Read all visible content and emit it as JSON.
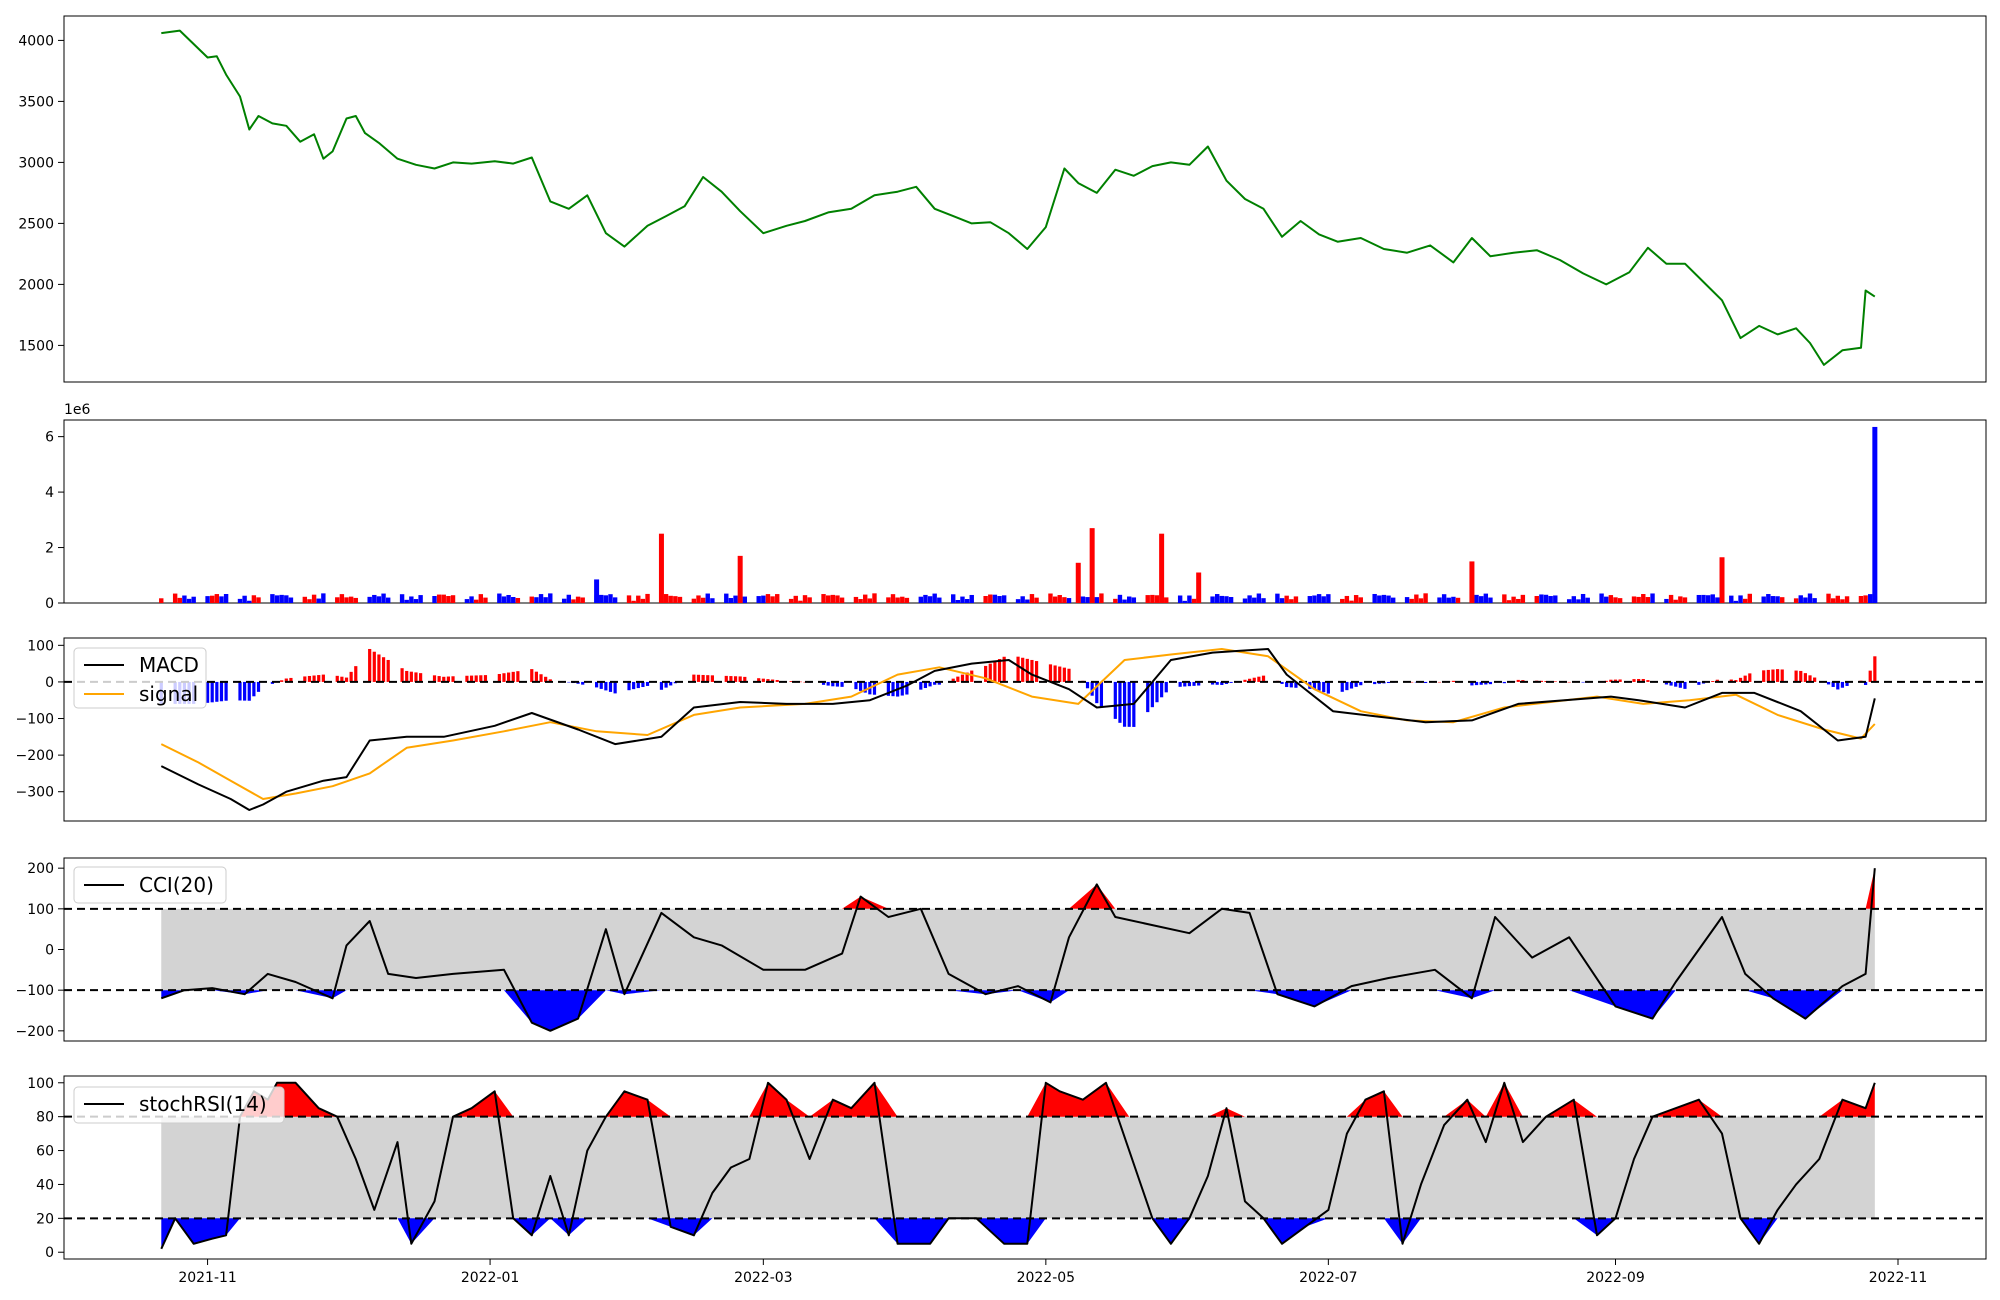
{
  "chart_data": [
    {
      "type": "line",
      "panel": "price",
      "ylim": [
        1200,
        4200
      ],
      "yticks": [
        "1500",
        "2000",
        "2500",
        "3000",
        "3500",
        "4000"
      ],
      "colors": {
        "line": "#008000"
      },
      "series": [
        {
          "x": [
            "2021-10-22",
            "2021-10-26",
            "2021-11-01",
            "2021-11-03",
            "2021-11-05",
            "2021-11-08",
            "2021-11-10",
            "2021-11-12",
            "2021-11-15",
            "2021-11-18",
            "2021-11-21",
            "2021-11-24",
            "2021-11-26",
            "2021-11-28",
            "2021-12-01",
            "2021-12-03",
            "2021-12-05",
            "2021-12-08",
            "2021-12-12",
            "2021-12-16",
            "2021-12-20",
            "2021-12-24",
            "2021-12-28",
            "2022-01-02",
            "2022-01-06",
            "2022-01-10",
            "2022-01-14",
            "2022-01-18",
            "2022-01-22",
            "2022-01-26",
            "2022-01-30",
            "2022-02-04",
            "2022-02-08",
            "2022-02-12",
            "2022-02-16",
            "2022-02-20",
            "2022-02-24",
            "2022-03-01",
            "2022-03-06",
            "2022-03-10",
            "2022-03-15",
            "2022-03-20",
            "2022-03-25",
            "2022-03-30",
            "2022-04-03",
            "2022-04-07",
            "2022-04-11",
            "2022-04-15",
            "2022-04-19",
            "2022-04-23",
            "2022-04-27",
            "2022-05-01",
            "2022-05-05",
            "2022-05-08",
            "2022-05-12",
            "2022-05-16",
            "2022-05-20",
            "2022-05-24",
            "2022-05-28",
            "2022-06-01",
            "2022-06-05",
            "2022-06-09",
            "2022-06-13",
            "2022-06-17",
            "2022-06-21",
            "2022-06-25",
            "2022-06-29",
            "2022-07-03",
            "2022-07-08",
            "2022-07-13",
            "2022-07-18",
            "2022-07-23",
            "2022-07-28",
            "2022-08-01",
            "2022-08-05",
            "2022-08-10",
            "2022-08-15",
            "2022-08-20",
            "2022-08-25",
            "2022-08-30",
            "2022-09-04",
            "2022-09-08",
            "2022-09-12",
            "2022-09-16",
            "2022-09-20",
            "2022-09-24",
            "2022-09-28",
            "2022-10-02",
            "2022-10-06",
            "2022-10-10",
            "2022-10-13",
            "2022-10-16",
            "2022-10-20",
            "2022-10-24",
            "2022-10-25",
            "2022-10-27"
          ],
          "y": [
            4060,
            4080,
            3860,
            3870,
            3720,
            3540,
            3270,
            3380,
            3320,
            3300,
            3170,
            3230,
            3030,
            3090,
            3360,
            3380,
            3240,
            3160,
            3030,
            2980,
            2950,
            3000,
            2990,
            3010,
            2990,
            3040,
            2680,
            2620,
            2730,
            2420,
            2310,
            2480,
            2560,
            2640,
            2880,
            2760,
            2600,
            2420,
            2480,
            2520,
            2590,
            2620,
            2730,
            2760,
            2800,
            2620,
            2560,
            2500,
            2510,
            2420,
            2290,
            2470,
            2950,
            2830,
            2750,
            2940,
            2890,
            2970,
            3000,
            2980,
            3130,
            2850,
            2700,
            2620,
            2390,
            2520,
            2410,
            2350,
            2380,
            2290,
            2260,
            2320,
            2180,
            2380,
            2230,
            2260,
            2280,
            2200,
            2090,
            2000,
            2100,
            2300,
            2170,
            2170,
            2020,
            1870,
            1560,
            1660,
            1590,
            1640,
            1520,
            1340,
            1460,
            1480,
            1950,
            1900
          ]
        }
      ]
    },
    {
      "type": "bar",
      "panel": "volume",
      "scale_label": "1e6",
      "ylim": [
        0,
        6.6
      ],
      "yticks": [
        "0",
        "2",
        "4",
        "6"
      ],
      "colors": {
        "up": "#ff0000",
        "down": "#0000ff"
      },
      "spikes": [
        {
          "x": "2022-02-07",
          "value": 2.5,
          "color": "red"
        },
        {
          "x": "2022-02-24",
          "value": 1.7,
          "color": "red"
        },
        {
          "x": "2022-05-11",
          "value": 2.7,
          "color": "red"
        },
        {
          "x": "2022-05-08",
          "value": 1.45,
          "color": "red"
        },
        {
          "x": "2022-05-26",
          "value": 2.5,
          "color": "red"
        },
        {
          "x": "2022-06-03",
          "value": 1.1,
          "color": "red"
        },
        {
          "x": "2022-08-01",
          "value": 1.5,
          "color": "red"
        },
        {
          "x": "2022-09-24",
          "value": 1.65,
          "color": "red"
        },
        {
          "x": "2022-01-24",
          "value": 0.85,
          "color": "blue"
        },
        {
          "x": "2022-10-27",
          "value": 6.35,
          "color": "blue"
        }
      ],
      "baseline_range": [
        0.05,
        0.35
      ]
    },
    {
      "type": "line",
      "panel": "macd",
      "ylim": [
        -380,
        120
      ],
      "yticks": [
        "100",
        "0",
        "−100",
        "−200",
        "−300"
      ],
      "reference_line": 0,
      "legend": {
        "position": "upper-left",
        "entries": [
          "MACD",
          "signal"
        ]
      },
      "colors": {
        "macd": "#000000",
        "signal": "#ffa500",
        "hist_pos": "#ff0000",
        "hist_neg": "#0000ff"
      },
      "series": [
        {
          "name": "MACD",
          "x": [
            "2021-10-22",
            "2021-10-30",
            "2021-11-06",
            "2021-11-10",
            "2021-11-13",
            "2021-11-18",
            "2021-11-26",
            "2021-12-01",
            "2021-12-06",
            "2021-12-14",
            "2021-12-22",
            "2022-01-02",
            "2022-01-10",
            "2022-01-20",
            "2022-01-28",
            "2022-02-07",
            "2022-02-14",
            "2022-02-24",
            "2022-03-06",
            "2022-03-16",
            "2022-03-24",
            "2022-04-01",
            "2022-04-07",
            "2022-04-15",
            "2022-04-23",
            "2022-04-28",
            "2022-05-06",
            "2022-05-12",
            "2022-05-20",
            "2022-05-28",
            "2022-06-06",
            "2022-06-12",
            "2022-06-18",
            "2022-06-22",
            "2022-07-02",
            "2022-07-12",
            "2022-07-22",
            "2022-08-01",
            "2022-08-11",
            "2022-08-21",
            "2022-08-31",
            "2022-09-06",
            "2022-09-16",
            "2022-09-24",
            "2022-10-01",
            "2022-10-11",
            "2022-10-19",
            "2022-10-25",
            "2022-10-27"
          ],
          "y": [
            -230,
            -280,
            -320,
            -350,
            -335,
            -300,
            -270,
            -260,
            -160,
            -150,
            -150,
            -120,
            -85,
            -130,
            -170,
            -150,
            -70,
            -55,
            -60,
            -60,
            -50,
            -10,
            30,
            50,
            60,
            20,
            -20,
            -70,
            -60,
            60,
            80,
            85,
            90,
            20,
            -80,
            -95,
            -110,
            -105,
            -60,
            -50,
            -40,
            -50,
            -70,
            -30,
            -30,
            -80,
            -160,
            -150,
            -45
          ]
        },
        {
          "name": "signal",
          "x": [
            "2021-10-22",
            "2021-10-30",
            "2021-11-06",
            "2021-11-13",
            "2021-11-20",
            "2021-11-28",
            "2021-12-06",
            "2021-12-14",
            "2021-12-24",
            "2022-01-04",
            "2022-01-14",
            "2022-01-24",
            "2022-02-04",
            "2022-02-14",
            "2022-02-24",
            "2022-03-10",
            "2022-03-20",
            "2022-03-30",
            "2022-04-08",
            "2022-04-18",
            "2022-04-28",
            "2022-05-08",
            "2022-05-18",
            "2022-05-28",
            "2022-06-08",
            "2022-06-18",
            "2022-06-28",
            "2022-07-08",
            "2022-07-18",
            "2022-07-28",
            "2022-08-08",
            "2022-08-18",
            "2022-08-28",
            "2022-09-07",
            "2022-09-17",
            "2022-09-27",
            "2022-10-06",
            "2022-10-16",
            "2022-10-24",
            "2022-10-27"
          ],
          "y": [
            -170,
            -220,
            -270,
            -320,
            -305,
            -285,
            -250,
            -180,
            -160,
            -135,
            -110,
            -135,
            -145,
            -90,
            -70,
            -60,
            -40,
            20,
            40,
            10,
            -40,
            -60,
            60,
            75,
            90,
            70,
            -20,
            -80,
            -105,
            -110,
            -70,
            -55,
            -40,
            -60,
            -50,
            -35,
            -90,
            -130,
            -155,
            -115
          ]
        }
      ]
    },
    {
      "type": "line",
      "panel": "cci",
      "ylim": [
        -225,
        225
      ],
      "yticks": [
        "200",
        "100",
        "0",
        "−100",
        "−200"
      ],
      "reference_lines": [
        100,
        -100
      ],
      "legend": {
        "position": "upper-left",
        "entries": [
          "CCI(20)"
        ]
      },
      "colors": {
        "line": "#000000",
        "above": "#ff0000",
        "below": "#0000ff",
        "band": "#d3d3d3"
      },
      "series": [
        {
          "name": "CCI(20)",
          "x": [
            "2021-10-22",
            "2021-10-27",
            "2021-11-02",
            "2021-11-09",
            "2021-11-14",
            "2021-11-20",
            "2021-11-28",
            "2021-12-01",
            "2021-12-06",
            "2021-12-10",
            "2021-12-16",
            "2021-12-24",
            "2022-01-04",
            "2022-01-10",
            "2022-01-14",
            "2022-01-20",
            "2022-01-26",
            "2022-01-30",
            "2022-02-07",
            "2022-02-14",
            "2022-02-20",
            "2022-03-01",
            "2022-03-10",
            "2022-03-18",
            "2022-03-22",
            "2022-03-28",
            "2022-04-04",
            "2022-04-10",
            "2022-04-18",
            "2022-04-25",
            "2022-05-02",
            "2022-05-06",
            "2022-05-12",
            "2022-05-16",
            "2022-05-24",
            "2022-06-01",
            "2022-06-08",
            "2022-06-14",
            "2022-06-20",
            "2022-06-28",
            "2022-07-06",
            "2022-07-14",
            "2022-07-24",
            "2022-08-01",
            "2022-08-06",
            "2022-08-14",
            "2022-08-22",
            "2022-09-01",
            "2022-09-09",
            "2022-09-14",
            "2022-09-24",
            "2022-09-29",
            "2022-10-05",
            "2022-10-12",
            "2022-10-20",
            "2022-10-25",
            "2022-10-27"
          ],
          "y": [
            -120,
            -100,
            -95,
            -110,
            -60,
            -80,
            -120,
            10,
            70,
            -60,
            -70,
            -60,
            -50,
            -180,
            -200,
            -170,
            50,
            -110,
            90,
            30,
            10,
            -50,
            -50,
            -10,
            130,
            80,
            100,
            -60,
            -110,
            -90,
            -130,
            30,
            160,
            80,
            60,
            40,
            100,
            90,
            -110,
            -140,
            -90,
            -70,
            -50,
            -120,
            80,
            -20,
            30,
            -140,
            -170,
            -80,
            80,
            -60,
            -120,
            -170,
            -90,
            -60,
            200
          ]
        }
      ]
    },
    {
      "type": "line",
      "panel": "stochrsi",
      "ylim": [
        -4,
        104
      ],
      "yticks": [
        "100",
        "80",
        "60",
        "40",
        "20",
        "0"
      ],
      "reference_lines": [
        80,
        20
      ],
      "legend": {
        "position": "upper-left",
        "entries": [
          "stochRSI(14)"
        ]
      },
      "colors": {
        "line": "#000000",
        "above": "#ff0000",
        "below": "#0000ff",
        "band": "#d3d3d3"
      },
      "series": [
        {
          "name": "stochRSI(14)",
          "x": [
            "2021-10-22",
            "2021-10-25",
            "2021-10-29",
            "2021-11-02",
            "2021-11-05",
            "2021-11-08",
            "2021-11-11",
            "2021-11-14",
            "2021-11-16",
            "2021-11-20",
            "2021-11-25",
            "2021-11-29",
            "2021-12-03",
            "2021-12-07",
            "2021-12-12",
            "2021-12-15",
            "2021-12-20",
            "2021-12-24",
            "2021-12-28",
            "2022-01-02",
            "2022-01-06",
            "2022-01-10",
            "2022-01-14",
            "2022-01-18",
            "2022-01-22",
            "2022-01-26",
            "2022-01-30",
            "2022-02-04",
            "2022-02-09",
            "2022-02-14",
            "2022-02-18",
            "2022-02-22",
            "2022-02-26",
            "2022-03-02",
            "2022-03-06",
            "2022-03-11",
            "2022-03-16",
            "2022-03-20",
            "2022-03-25",
            "2022-03-30",
            "2022-04-03",
            "2022-04-06",
            "2022-04-10",
            "2022-04-16",
            "2022-04-22",
            "2022-04-27",
            "2022-05-01",
            "2022-05-04",
            "2022-05-09",
            "2022-05-14",
            "2022-05-19",
            "2022-05-24",
            "2022-05-28",
            "2022-06-01",
            "2022-06-05",
            "2022-06-09",
            "2022-06-13",
            "2022-06-17",
            "2022-06-21",
            "2022-06-26",
            "2022-07-01",
            "2022-07-05",
            "2022-07-09",
            "2022-07-13",
            "2022-07-17",
            "2022-07-21",
            "2022-07-26",
            "2022-07-31",
            "2022-08-04",
            "2022-08-08",
            "2022-08-12",
            "2022-08-17",
            "2022-08-23",
            "2022-08-28",
            "2022-09-01",
            "2022-09-05",
            "2022-09-09",
            "2022-09-14",
            "2022-09-19",
            "2022-09-24",
            "2022-09-28",
            "2022-10-02",
            "2022-10-06",
            "2022-10-10",
            "2022-10-15",
            "2022-10-20",
            "2022-10-25",
            "2022-10-27"
          ],
          "y": [
            2,
            20,
            5,
            8,
            10,
            80,
            95,
            90,
            100,
            100,
            85,
            80,
            55,
            25,
            65,
            5,
            30,
            80,
            85,
            95,
            20,
            10,
            45,
            10,
            60,
            80,
            95,
            90,
            15,
            10,
            35,
            50,
            55,
            100,
            90,
            55,
            90,
            85,
            100,
            5,
            5,
            5,
            20,
            20,
            5,
            5,
            100,
            95,
            90,
            100,
            60,
            20,
            5,
            20,
            45,
            85,
            30,
            20,
            5,
            15,
            25,
            70,
            90,
            95,
            5,
            40,
            75,
            90,
            65,
            100,
            65,
            80,
            90,
            10,
            20,
            55,
            80,
            85,
            90,
            70,
            20,
            5,
            25,
            40,
            55,
            90,
            85,
            100
          ]
        }
      ]
    },
    {
      "type": "axis",
      "panel": "shared-x",
      "xlim": [
        "2021-10-01",
        "2022-11-20"
      ],
      "xticks": [
        "2021-11",
        "2022-01",
        "2022-03",
        "2022-05",
        "2022-07",
        "2022-09",
        "2022-11"
      ]
    }
  ]
}
